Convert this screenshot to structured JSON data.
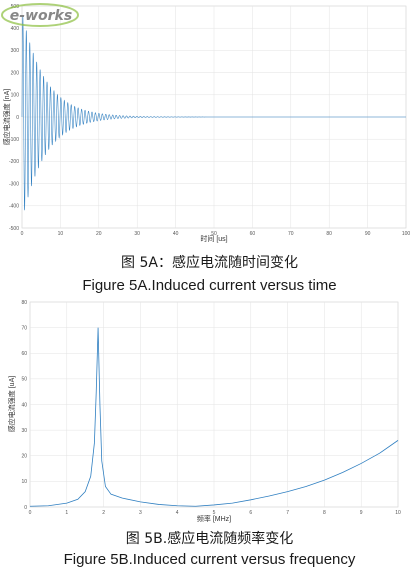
{
  "captions": {
    "a_zh": "图 5A：感应电流随时间变化",
    "a_en": "Figure 5A.Induced current versus time",
    "b_zh": "图 5B.感应电流随频率变化",
    "b_en": "Figure 5B.Induced current versus frequency"
  },
  "watermark": "e-works",
  "chart_data": [
    {
      "type": "line",
      "xlabel": "时间 [us]",
      "ylabel": "感应电流强度 [nA]",
      "xlim": [
        0,
        100
      ],
      "ylim": [
        -500,
        500
      ],
      "xticks": [
        0,
        10,
        20,
        30,
        40,
        50,
        60,
        70,
        80,
        90,
        100
      ],
      "xtick_labels": [
        "0",
        "10",
        "20",
        "30",
        "40",
        "50",
        "60",
        "70",
        "80",
        "90",
        "100"
      ],
      "yticks": [
        500,
        400,
        300,
        200,
        100,
        0,
        -100,
        -200,
        -300,
        -400,
        -500
      ],
      "ytick_labels": [
        "500",
        "400",
        "300",
        "200",
        "100",
        "0",
        "-100",
        "-200",
        "-300",
        "-400",
        "-500"
      ],
      "grid": true,
      "color": "#2f7fc1",
      "series": [
        {
          "description": "decaying oscillation",
          "amplitude": 470,
          "decay_time_us": 6,
          "period_us": 0.9,
          "baseline": 0
        }
      ]
    },
    {
      "type": "line",
      "xlabel": "频率 [MHz]",
      "ylabel": "感应电流强度 [uA]",
      "xlim": [
        0,
        10
      ],
      "ylim": [
        0,
        80
      ],
      "xticks": [
        0,
        1,
        2,
        3,
        4,
        5,
        6,
        7,
        8,
        9,
        10
      ],
      "xtick_labels": [
        "0",
        "1",
        "2",
        "3",
        "4",
        "5",
        "6",
        "7",
        "8",
        "9",
        "10"
      ],
      "yticks": [
        0,
        10,
        20,
        30,
        40,
        50,
        60,
        70,
        80
      ],
      "ytick_labels": [
        "0",
        "10",
        "20",
        "30",
        "40",
        "50",
        "60",
        "70",
        "80"
      ],
      "grid": true,
      "color": "#2f7fc1",
      "series": [
        {
          "x": [
            0,
            0.5,
            1.0,
            1.3,
            1.5,
            1.65,
            1.75,
            1.8,
            1.85,
            1.9,
            1.95,
            2.05,
            2.2,
            2.5,
            3.0,
            3.5,
            4.0,
            4.5,
            5.0,
            5.5,
            6.0,
            6.5,
            7.0,
            7.5,
            8.0,
            8.5,
            9.0,
            9.5,
            10.0
          ],
          "y": [
            0.3,
            0.5,
            1.5,
            3,
            6,
            12,
            25,
            45,
            70,
            40,
            18,
            8,
            5,
            3.5,
            2,
            1,
            0.5,
            0.3,
            0.8,
            1.5,
            2.8,
            4.3,
            6,
            8,
            10.5,
            13.5,
            17,
            21,
            26
          ]
        }
      ]
    }
  ]
}
